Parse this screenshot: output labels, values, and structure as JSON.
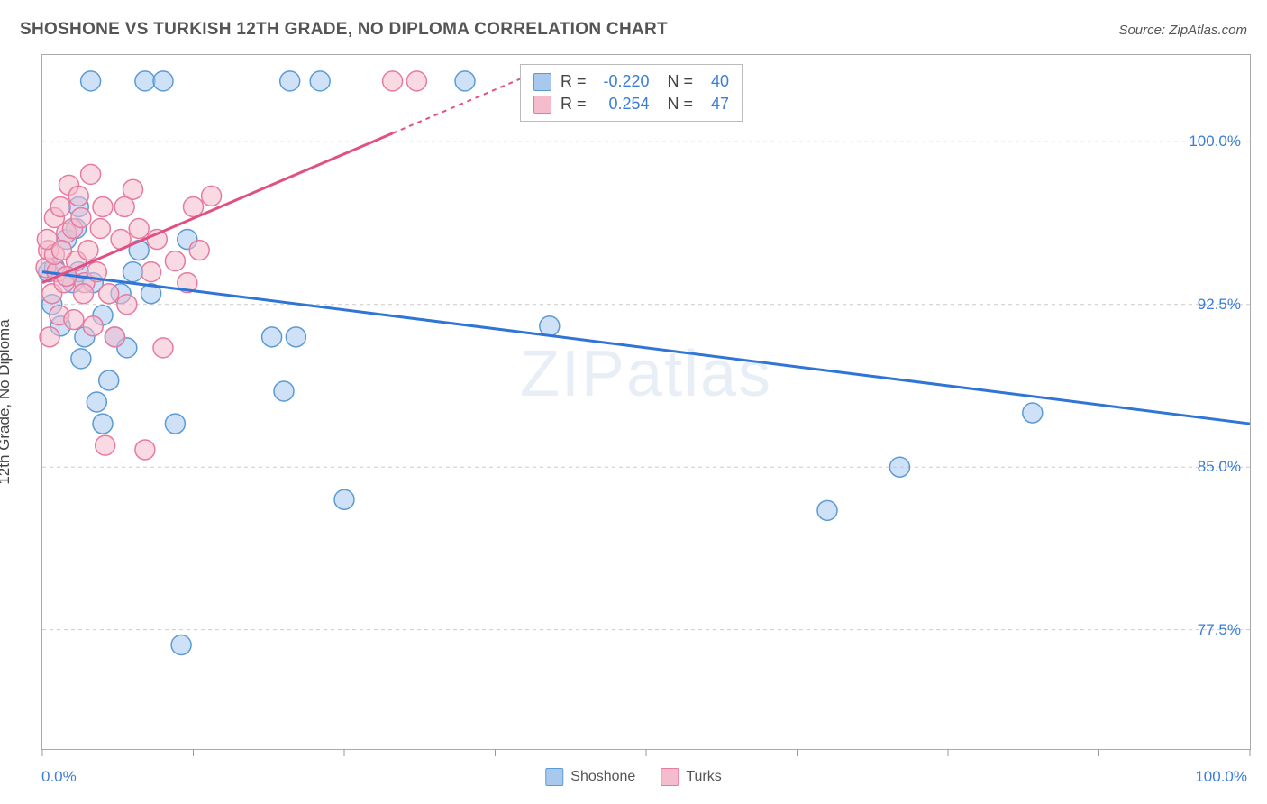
{
  "header": {
    "title": "SHOSHONE VS TURKISH 12TH GRADE, NO DIPLOMA CORRELATION CHART",
    "source": "Source: ZipAtlas.com"
  },
  "watermark": {
    "zip": "ZIP",
    "atlas": "atlas"
  },
  "chart": {
    "type": "scatter",
    "ylabel": "12th Grade, No Diploma",
    "xlim": [
      0,
      100
    ],
    "ylim": [
      72,
      104
    ],
    "xticks": [
      0,
      12.5,
      25,
      37.5,
      50,
      62.5,
      75,
      87.5,
      100
    ],
    "yticks": [
      77.5,
      85.0,
      92.5,
      100.0
    ],
    "ytick_labels": [
      "77.5%",
      "85.0%",
      "92.5%",
      "100.0%"
    ],
    "xaxis_left": "0.0%",
    "xaxis_right": "100.0%",
    "grid_color": "#cccccc",
    "background_color": "#ffffff",
    "series": [
      {
        "name": "Shoshone",
        "color_fill": "#a8c8ee",
        "color_stroke": "#5b9bd5",
        "line_color": "#2e75d6",
        "marker_r": 11,
        "points": [
          [
            0.5,
            94.0
          ],
          [
            1.0,
            94.2
          ],
          [
            2.0,
            95.5
          ],
          [
            2.5,
            93.5
          ],
          [
            3.0,
            94.0
          ],
          [
            3.5,
            91.0
          ],
          [
            4.0,
            102.8
          ],
          [
            5.0,
            92.0
          ],
          [
            5.5,
            89.0
          ],
          [
            6.0,
            91.0
          ],
          [
            7.0,
            90.5
          ],
          [
            8.0,
            95.0
          ],
          [
            8.5,
            102.8
          ],
          [
            10.0,
            102.8
          ],
          [
            11.0,
            87.0
          ],
          [
            11.5,
            76.8
          ],
          [
            12.0,
            95.5
          ],
          [
            19.0,
            91.0
          ],
          [
            20.0,
            88.5
          ],
          [
            20.5,
            102.8
          ],
          [
            21.0,
            91.0
          ],
          [
            23.0,
            102.8
          ],
          [
            25.0,
            83.5
          ],
          [
            35.0,
            102.8
          ],
          [
            42.0,
            91.5
          ],
          [
            44.0,
            102.8
          ],
          [
            65.0,
            83.0
          ],
          [
            71.0,
            85.0
          ],
          [
            82.0,
            87.5
          ],
          [
            3.0,
            97.0
          ],
          [
            4.5,
            88.0
          ],
          [
            6.5,
            93.0
          ],
          [
            1.5,
            91.5
          ],
          [
            2.8,
            96.0
          ],
          [
            0.8,
            92.5
          ],
          [
            5.0,
            87.0
          ],
          [
            7.5,
            94.0
          ],
          [
            9.0,
            93.0
          ],
          [
            3.2,
            90.0
          ],
          [
            4.2,
            93.5
          ]
        ],
        "trend": {
          "x1": 0,
          "y1": 94.0,
          "x2": 100,
          "y2": 87.0,
          "dash_from_x": null
        }
      },
      {
        "name": "Turks",
        "color_fill": "#f4bccc",
        "color_stroke": "#e77aa0",
        "line_color": "#e15084",
        "marker_r": 11,
        "points": [
          [
            0.3,
            94.2
          ],
          [
            0.5,
            95.0
          ],
          [
            0.8,
            93.0
          ],
          [
            1.0,
            96.5
          ],
          [
            1.2,
            94.0
          ],
          [
            1.5,
            97.0
          ],
          [
            1.8,
            93.5
          ],
          [
            2.0,
            95.8
          ],
          [
            2.2,
            98.0
          ],
          [
            2.5,
            96.0
          ],
          [
            2.8,
            94.5
          ],
          [
            3.0,
            97.5
          ],
          [
            3.2,
            96.5
          ],
          [
            3.5,
            93.5
          ],
          [
            3.8,
            95.0
          ],
          [
            4.0,
            98.5
          ],
          [
            4.2,
            91.5
          ],
          [
            4.5,
            94.0
          ],
          [
            5.0,
            97.0
          ],
          [
            5.5,
            93.0
          ],
          [
            6.0,
            91.0
          ],
          [
            6.5,
            95.5
          ],
          [
            7.0,
            92.5
          ],
          [
            7.5,
            97.8
          ],
          [
            8.0,
            96.0
          ],
          [
            8.5,
            85.8
          ],
          [
            9.0,
            94.0
          ],
          [
            9.5,
            95.5
          ],
          [
            10.0,
            90.5
          ],
          [
            11.0,
            94.5
          ],
          [
            12.0,
            93.5
          ],
          [
            12.5,
            97.0
          ],
          [
            13.0,
            95.0
          ],
          [
            14.0,
            97.5
          ],
          [
            29.0,
            102.8
          ],
          [
            31.0,
            102.8
          ],
          [
            0.6,
            91.0
          ],
          [
            1.4,
            92.0
          ],
          [
            2.6,
            91.8
          ],
          [
            3.4,
            93.0
          ],
          [
            4.8,
            96.0
          ],
          [
            5.2,
            86.0
          ],
          [
            6.8,
            97.0
          ],
          [
            1.0,
            94.8
          ],
          [
            2.0,
            93.8
          ],
          [
            0.4,
            95.5
          ],
          [
            1.6,
            95.0
          ]
        ],
        "trend": {
          "x1": 0,
          "y1": 93.5,
          "x2": 40,
          "y2": 103.0,
          "dash_from_x": 29
        }
      }
    ],
    "stats": [
      {
        "series": "Shoshone",
        "color_fill": "#a8c8ee",
        "color_stroke": "#5b9bd5",
        "r": "-0.220",
        "n": "40"
      },
      {
        "series": "Turks",
        "color_fill": "#f4bccc",
        "color_stroke": "#e77aa0",
        "r": "0.254",
        "n": "47"
      }
    ],
    "legend": [
      {
        "label": "Shoshone",
        "fill": "#a8c8ee",
        "stroke": "#5b9bd5"
      },
      {
        "label": "Turks",
        "fill": "#f4bccc",
        "stroke": "#e77aa0"
      }
    ]
  }
}
